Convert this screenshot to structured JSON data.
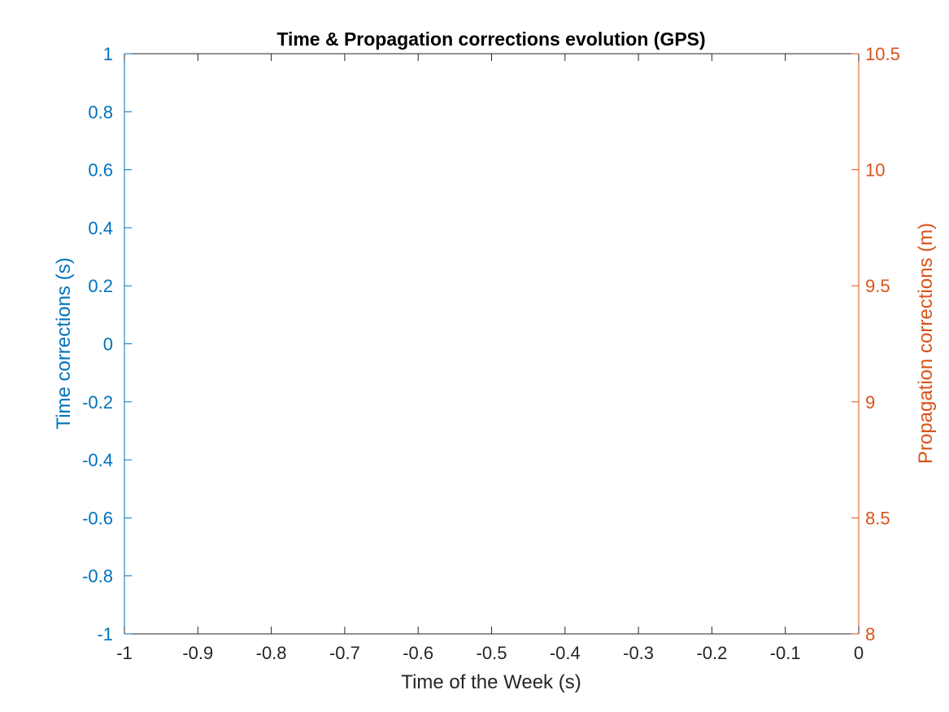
{
  "chart_data": {
    "type": "line",
    "title": "Time & Propagation corrections evolution (GPS)",
    "xlabel": "Time of the Week (s)",
    "ylabel_left": "Time corrections (s)",
    "ylabel_right": "Propagation corrections (m)",
    "xlim": [
      -1,
      0
    ],
    "ylim_left": [
      -1,
      1
    ],
    "ylim_right": [
      8,
      10.5
    ],
    "x_ticks": [
      -1,
      -0.9,
      -0.8,
      -0.7,
      -0.6,
      -0.5,
      -0.4,
      -0.3,
      -0.2,
      -0.1,
      0
    ],
    "x_tick_labels": [
      "-1",
      "-0.9",
      "-0.8",
      "-0.7",
      "-0.6",
      "-0.5",
      "-0.4",
      "-0.3",
      "-0.2",
      "-0.1",
      "0"
    ],
    "y_left_ticks": [
      -1,
      -0.8,
      -0.6,
      -0.4,
      -0.2,
      0,
      0.2,
      0.4,
      0.6,
      0.8,
      1
    ],
    "y_left_tick_labels": [
      "-1",
      "-0.8",
      "-0.6",
      "-0.4",
      "-0.2",
      "0",
      "0.2",
      "0.4",
      "0.6",
      "0.8",
      "1"
    ],
    "y_right_ticks": [
      8,
      8.5,
      9,
      9.5,
      10,
      10.5
    ],
    "y_right_tick_labels": [
      "8",
      "8.5",
      "9",
      "9.5",
      "10",
      "10.5"
    ],
    "series": [],
    "grid": false,
    "colors": {
      "left_axis": "#0072BD",
      "right_axis": "#D95319",
      "x_axis": "#262626",
      "title": "#000000"
    }
  }
}
